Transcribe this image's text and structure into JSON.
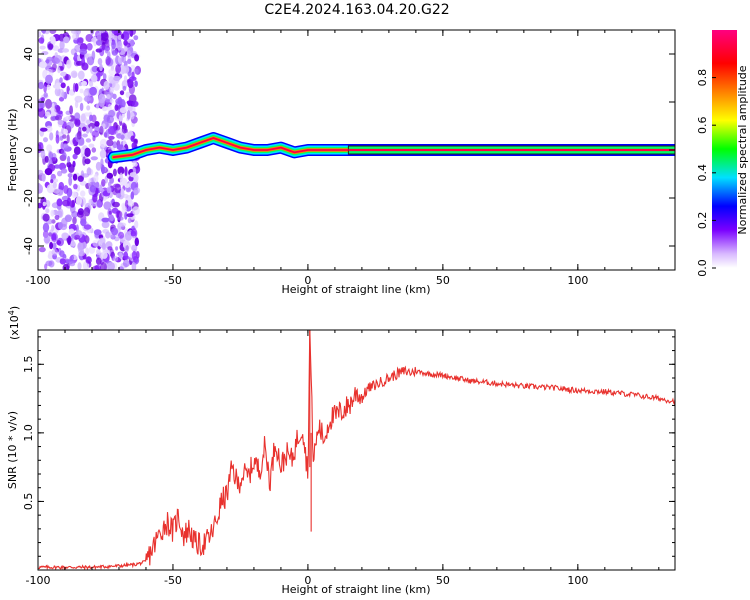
{
  "title": "C2E4.2024.163.04.20.G22",
  "chart_data": [
    {
      "type": "heatmap",
      "xlabel": "Height of straight line (km)",
      "ylabel": "Frequency (Hz)",
      "xlim": [
        -100,
        136
      ],
      "ylim": [
        -50,
        50
      ],
      "x_ticks": [
        -100,
        -50,
        0,
        50,
        100
      ],
      "y_ticks": [
        -40,
        -20,
        0,
        20,
        40
      ],
      "colorbar": {
        "label": "Normalized spectral amplitude",
        "range": [
          0,
          1
        ],
        "ticks": [
          "0.0",
          "0.2",
          "0.4",
          "0.6",
          "0.8"
        ]
      },
      "noise_region_x": [
        -100,
        -63
      ],
      "ridge": {
        "x": [
          -72,
          -65,
          -60,
          -55,
          -50,
          -45,
          -40,
          -35,
          -30,
          -25,
          -20,
          -15,
          -10,
          -5,
          0,
          5,
          10,
          15,
          30,
          60,
          100,
          136
        ],
        "y": [
          -3,
          -2,
          0,
          1,
          0,
          1,
          3,
          5,
          3,
          1,
          0,
          0,
          1,
          -1,
          0,
          0,
          0,
          0,
          0,
          0,
          0,
          0
        ]
      }
    },
    {
      "type": "line",
      "xlabel": "Height of straight line (km)",
      "ylabel": "SNR (10 * v/v)",
      "y_multiplier": "(x10",
      "y_multiplier_exp": "4",
      "y_multiplier_close": ")",
      "xlim": [
        -100,
        136
      ],
      "ylim": [
        0,
        1.75
      ],
      "x_ticks": [
        -100,
        -50,
        0,
        50,
        100
      ],
      "y_ticks": [
        "0.5",
        "1.0",
        "1.5"
      ],
      "color": "#e8322e",
      "x": [
        -100,
        -90,
        -80,
        -70,
        -64,
        -60,
        -58,
        -56,
        -54,
        -52,
        -50,
        -48,
        -46,
        -44,
        -42,
        -40,
        -38,
        -36,
        -34,
        -32,
        -30,
        -28,
        -26,
        -24,
        -22,
        -20,
        -18,
        -16,
        -14,
        -12,
        -10,
        -8,
        -6,
        -4,
        -2,
        0,
        0.7,
        2,
        4,
        6,
        8,
        10,
        12,
        14,
        16,
        18,
        20,
        22,
        25,
        28,
        30,
        33,
        36,
        38,
        40,
        45,
        50,
        55,
        60,
        70,
        80,
        90,
        100,
        110,
        120,
        130,
        136
      ],
      "y": [
        0.02,
        0.02,
        0.02,
        0.03,
        0.04,
        0.06,
        0.14,
        0.22,
        0.3,
        0.35,
        0.28,
        0.4,
        0.25,
        0.3,
        0.2,
        0.18,
        0.2,
        0.25,
        0.35,
        0.5,
        0.55,
        0.75,
        0.62,
        0.7,
        0.68,
        0.8,
        0.72,
        0.9,
        0.65,
        0.95,
        0.75,
        0.85,
        0.8,
        0.95,
        1.05,
        0.7,
        1.75,
        0.8,
        1.05,
        0.95,
        1.1,
        1.12,
        1.15,
        1.18,
        1.22,
        1.3,
        1.25,
        1.32,
        1.35,
        1.38,
        1.4,
        1.43,
        1.45,
        1.44,
        1.45,
        1.43,
        1.42,
        1.4,
        1.38,
        1.36,
        1.34,
        1.33,
        1.31,
        1.3,
        1.28,
        1.25,
        1.23
      ]
    }
  ]
}
